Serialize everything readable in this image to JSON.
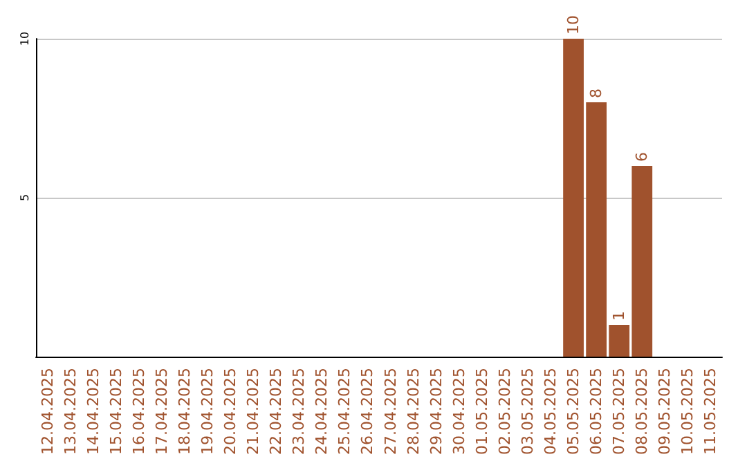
{
  "chart_data": {
    "type": "bar",
    "categories": [
      "12.04.2025",
      "13.04.2025",
      "14.04.2025",
      "15.04.2025",
      "16.04.2025",
      "17.04.2025",
      "18.04.2025",
      "19.04.2025",
      "20.04.2025",
      "21.04.2025",
      "22.04.2025",
      "23.04.2025",
      "24.04.2025",
      "25.04.2025",
      "26.04.2025",
      "27.04.2025",
      "28.04.2025",
      "29.04.2025",
      "30.04.2025",
      "01.05.2025",
      "02.05.2025",
      "03.05.2025",
      "04.05.2025",
      "05.05.2025",
      "06.05.2025",
      "07.05.2025",
      "08.05.2025",
      "09.05.2025",
      "10.05.2025",
      "11.05.2025"
    ],
    "values": [
      null,
      null,
      null,
      null,
      null,
      null,
      null,
      null,
      null,
      null,
      null,
      null,
      null,
      null,
      null,
      null,
      null,
      null,
      null,
      null,
      null,
      null,
      null,
      10,
      8,
      1,
      6,
      null,
      null,
      null
    ],
    "color": "#a0522d",
    "ylim": [
      0,
      10
    ],
    "yticks": [
      5,
      10
    ],
    "grid": "y",
    "data_labels": true
  }
}
